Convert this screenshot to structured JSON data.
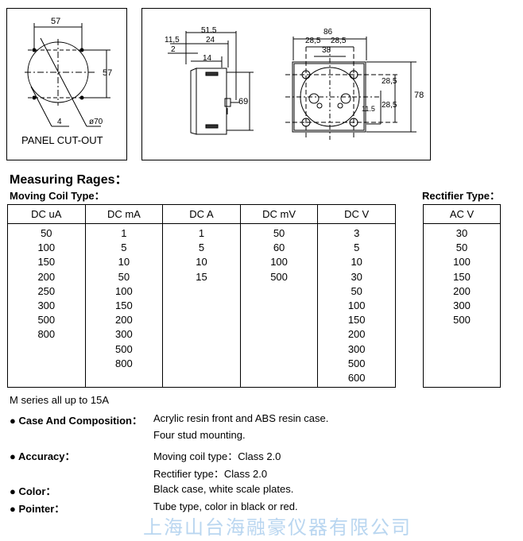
{
  "drawings": {
    "panel_cutout": {
      "dim_width": "57",
      "dim_height": "57",
      "dim_hole": "4",
      "dim_diameter": "ø70",
      "caption": "PANEL CUT-OUT"
    },
    "side_view": {
      "dim_total": "51.5",
      "dim_front": "11,5",
      "dim_body": "24",
      "dim_lip": "2",
      "dim_stud": "14",
      "dim_height": "69"
    },
    "rear_view": {
      "dim_width": "86",
      "dim_left": "28,5",
      "dim_right": "28,5",
      "dim_terminals": "38",
      "dim_upper": "28,5",
      "dim_lower": "28,5",
      "dim_height": "78",
      "dim_offset": "11.5"
    }
  },
  "heading": "Measuring Rages：",
  "moving_coil": {
    "label": "Moving Coil Type：",
    "columns": [
      {
        "header": "DC uA",
        "values": "50\n100\n150\n200\n250\n300\n500\n800"
      },
      {
        "header": "DC mA",
        "values": "1\n5\n10\n50\n100\n150\n200\n300\n500\n800"
      },
      {
        "header": "DC A",
        "values": "1\n5\n10\n15"
      },
      {
        "header": "DC mV",
        "values": "50\n60\n100\n500"
      },
      {
        "header": "DC V",
        "values": "3\n5\n10\n30\n50\n100\n150\n200\n300\n500\n600"
      }
    ]
  },
  "rectifier": {
    "label": "Rectifier Type：",
    "columns": [
      {
        "header": "AC V",
        "values": "30\n50\n100\n150\n200\n300\n500"
      }
    ]
  },
  "watermark": "上海山台海融豪仪器有限公司",
  "note": "M series all up to 15A",
  "specs": [
    {
      "label": "● Case And Composition：",
      "lines": [
        "Acrylic resin front and ABS resin case.",
        "Four stud mounting."
      ]
    },
    {
      "label": "● Accuracy：",
      "lines": [
        "Moving coil type：Class 2.0",
        "Rectifier type：Class 2.0"
      ]
    },
    {
      "label": "● Color：",
      "lines": [
        "Black case, white scale plates."
      ]
    },
    {
      "label": "● Pointer：",
      "lines": [
        "Tube type, color in black or red."
      ]
    }
  ]
}
